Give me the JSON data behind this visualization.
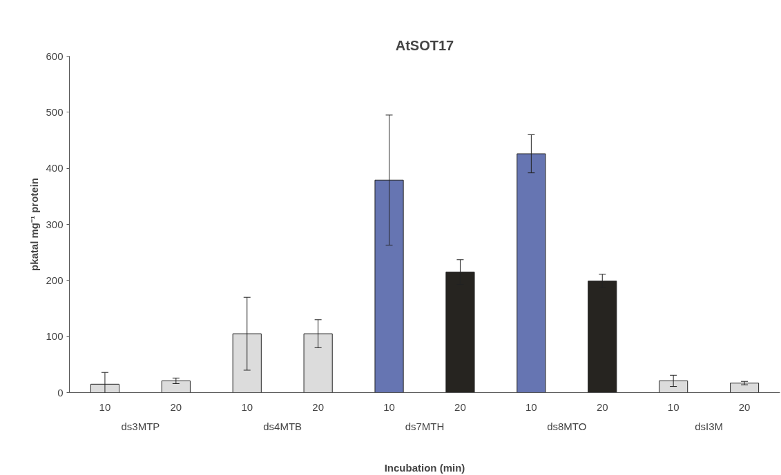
{
  "chart_data": {
    "type": "bar",
    "title": "AtSOT17",
    "xlabel": "Incubation (min)",
    "ylabel": "pkatal mg⁻¹ protein",
    "categories": [
      "10",
      "20",
      "10",
      "20",
      "10",
      "20",
      "10",
      "20",
      "10",
      "20"
    ],
    "annotations": [
      "ds3MTP",
      "ds4MTB",
      "ds7MTH",
      "ds8MTO",
      "dsI3M"
    ],
    "values": [
      15,
      21,
      105,
      105,
      379,
      215,
      426,
      199,
      21,
      17
    ],
    "errors": [
      21,
      5,
      65,
      25,
      116,
      22,
      34,
      12,
      10,
      3
    ],
    "colors": [
      "#dcdcdc",
      "#dcdcdc",
      "#dcdcdc",
      "#dcdcdc",
      "#6675b2",
      "#262420",
      "#6675b2",
      "#262420",
      "#dcdcdc",
      "#dcdcdc"
    ],
    "ylim": [
      0,
      600
    ],
    "yticks": [
      0,
      100,
      200,
      300,
      400,
      500,
      600
    ],
    "grid": false
  }
}
